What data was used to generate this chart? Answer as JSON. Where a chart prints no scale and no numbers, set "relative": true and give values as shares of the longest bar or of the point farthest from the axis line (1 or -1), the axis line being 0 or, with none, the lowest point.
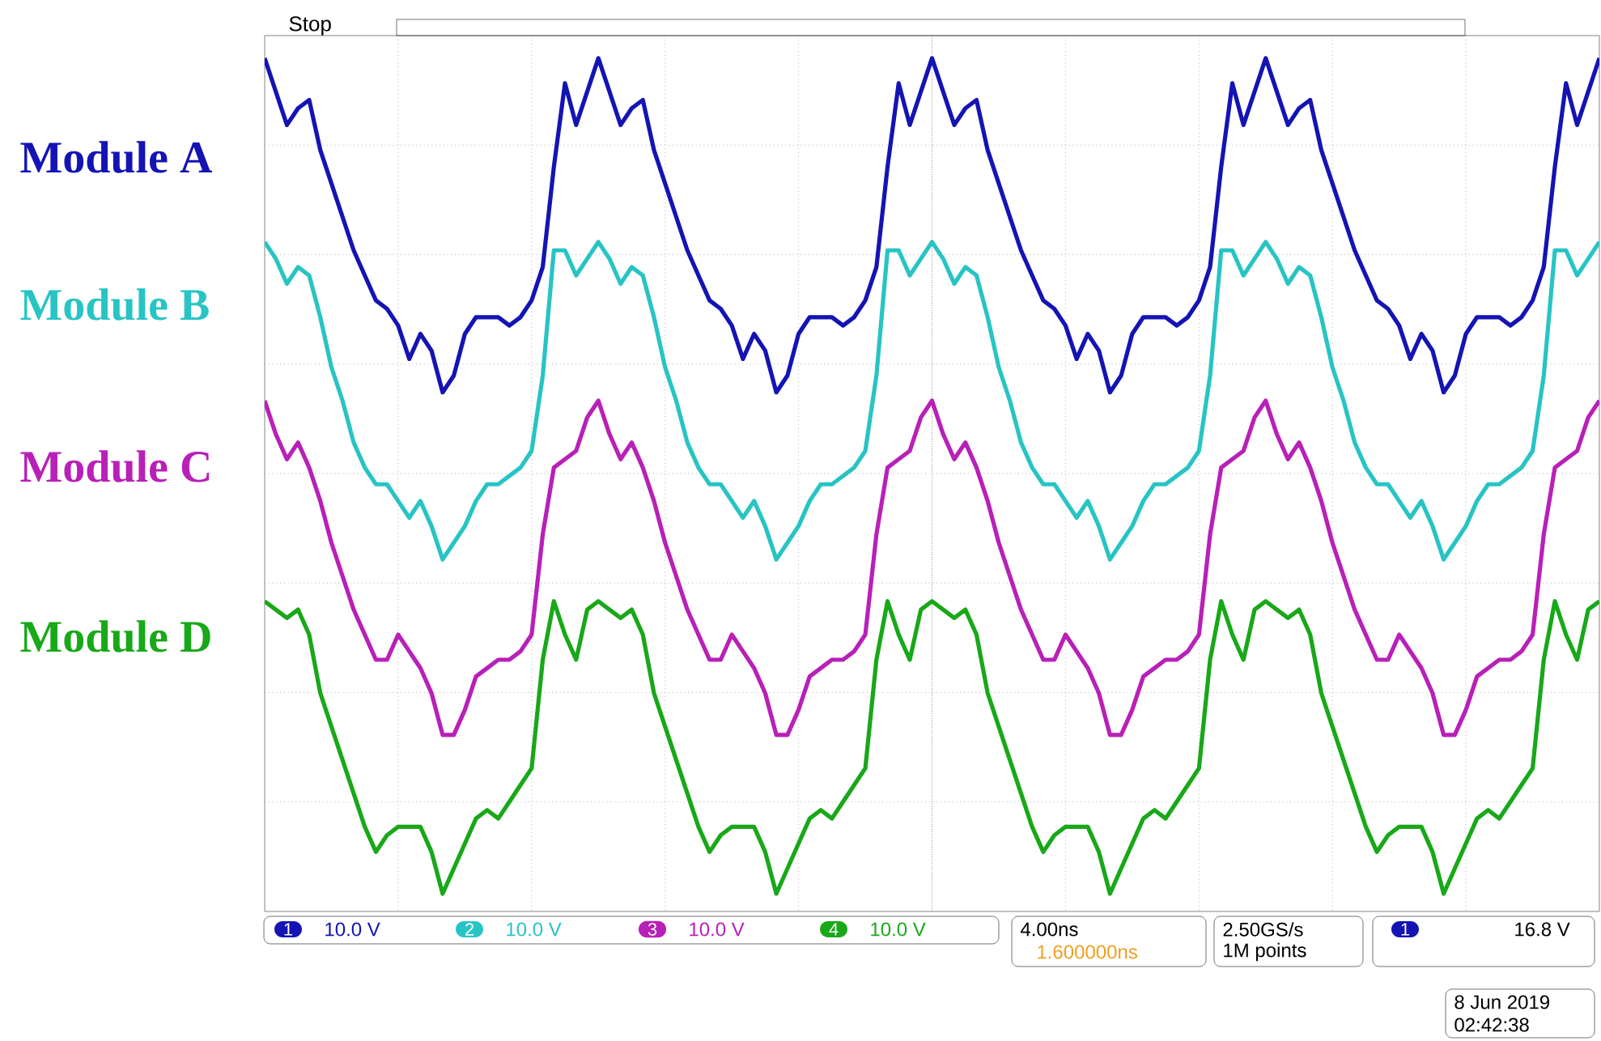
{
  "chart_data": {
    "type": "line",
    "relative": true,
    "grid": true,
    "categories": [
      null,
      null,
      null,
      null,
      null,
      null,
      null,
      null,
      null,
      null,
      null,
      null,
      null,
      null,
      null,
      null,
      null,
      null,
      null,
      null,
      null,
      null,
      null,
      null,
      null,
      null,
      null,
      null,
      null,
      null,
      null,
      null,
      null,
      null,
      null,
      null,
      null,
      null,
      null,
      null,
      null,
      null,
      null,
      null,
      null,
      null,
      null,
      null,
      null,
      null,
      null,
      null,
      null,
      null,
      null,
      null,
      null,
      null,
      null,
      null,
      null,
      null,
      null,
      null,
      null,
      null,
      null,
      null,
      null,
      null,
      null,
      null,
      null,
      null,
      null,
      null,
      null,
      null,
      null,
      null,
      null,
      null,
      null,
      null,
      null,
      null,
      null,
      null,
      null,
      null,
      null,
      null,
      null,
      null,
      null,
      null,
      null,
      null,
      null,
      null,
      null,
      null,
      null,
      null,
      null,
      null,
      null,
      null,
      null,
      null,
      null,
      null,
      null,
      null,
      null,
      null,
      null,
      null,
      null,
      null,
      null
    ],
    "series": [
      {
        "name": "Module A",
        "color": "#1414b4",
        "values": [
          1,
          0.96,
          0.92,
          0.94,
          0.95,
          0.89,
          0.85,
          0.81,
          0.77,
          0.74,
          0.71,
          0.7,
          0.68,
          0.64,
          0.67,
          0.65,
          0.6,
          0.62,
          0.67,
          0.69,
          0.69,
          0.69,
          0.68,
          0.69,
          0.71,
          0.75,
          0.87,
          0.97,
          0.92,
          0.96,
          1,
          0.96,
          0.92,
          0.94,
          0.95,
          0.89,
          0.85,
          0.81,
          0.77,
          0.74,
          0.71,
          0.7,
          0.68,
          0.64,
          0.67,
          0.65,
          0.6,
          0.62,
          0.67,
          0.69,
          0.69,
          0.69,
          0.68,
          0.69,
          0.71,
          0.75,
          0.87,
          0.97,
          0.92,
          0.96,
          1,
          0.96,
          0.92,
          0.94,
          0.95,
          0.89,
          0.85,
          0.81,
          0.77,
          0.74,
          0.71,
          0.7,
          0.68,
          0.64,
          0.67,
          0.65,
          0.6,
          0.62,
          0.67,
          0.69,
          0.69,
          0.69,
          0.68,
          0.69,
          0.71,
          0.75,
          0.87,
          0.97,
          0.92,
          0.96,
          1,
          0.96,
          0.92,
          0.94,
          0.95,
          0.89,
          0.85,
          0.81,
          0.77,
          0.74,
          0.71,
          0.7,
          0.68,
          0.64,
          0.67,
          0.65,
          0.6,
          0.62,
          0.67,
          0.69,
          0.69,
          0.69,
          0.68,
          0.69,
          0.71,
          0.75,
          0.87,
          0.97,
          0.92,
          0.96,
          1
        ]
      },
      {
        "name": "Module B",
        "color": "#28c4c4",
        "values": [
          0.78,
          0.76,
          0.73,
          0.75,
          0.74,
          0.69,
          0.63,
          0.59,
          0.54,
          0.51,
          0.49,
          0.49,
          0.47,
          0.45,
          0.47,
          0.44,
          0.4,
          0.42,
          0.44,
          0.47,
          0.49,
          0.49,
          0.5,
          0.51,
          0.53,
          0.62,
          0.77,
          0.77,
          0.74,
          0.76,
          0.78,
          0.76,
          0.73,
          0.75,
          0.74,
          0.69,
          0.63,
          0.59,
          0.54,
          0.51,
          0.49,
          0.49,
          0.47,
          0.45,
          0.47,
          0.44,
          0.4,
          0.42,
          0.44,
          0.47,
          0.49,
          0.49,
          0.5,
          0.51,
          0.53,
          0.62,
          0.77,
          0.77,
          0.74,
          0.76,
          0.78,
          0.76,
          0.73,
          0.75,
          0.74,
          0.69,
          0.63,
          0.59,
          0.54,
          0.51,
          0.49,
          0.49,
          0.47,
          0.45,
          0.47,
          0.44,
          0.4,
          0.42,
          0.44,
          0.47,
          0.49,
          0.49,
          0.5,
          0.51,
          0.53,
          0.62,
          0.77,
          0.77,
          0.74,
          0.76,
          0.78,
          0.76,
          0.73,
          0.75,
          0.74,
          0.69,
          0.63,
          0.59,
          0.54,
          0.51,
          0.49,
          0.49,
          0.47,
          0.45,
          0.47,
          0.44,
          0.4,
          0.42,
          0.44,
          0.47,
          0.49,
          0.49,
          0.5,
          0.51,
          0.53,
          0.62,
          0.77,
          0.77,
          0.74,
          0.76,
          0.78
        ]
      },
      {
        "name": "Module C",
        "color": "#b820b8",
        "values": [
          0.59,
          0.55,
          0.52,
          0.54,
          0.51,
          0.47,
          0.42,
          0.38,
          0.34,
          0.31,
          0.28,
          0.28,
          0.31,
          0.29,
          0.27,
          0.24,
          0.19,
          0.19,
          0.22,
          0.26,
          0.27,
          0.28,
          0.28,
          0.29,
          0.31,
          0.43,
          0.51,
          0.52,
          0.53,
          0.57,
          0.59,
          0.55,
          0.52,
          0.54,
          0.51,
          0.47,
          0.42,
          0.38,
          0.34,
          0.31,
          0.28,
          0.28,
          0.31,
          0.29,
          0.27,
          0.24,
          0.19,
          0.19,
          0.22,
          0.26,
          0.27,
          0.28,
          0.28,
          0.29,
          0.31,
          0.43,
          0.51,
          0.52,
          0.53,
          0.57,
          0.59,
          0.55,
          0.52,
          0.54,
          0.51,
          0.47,
          0.42,
          0.38,
          0.34,
          0.31,
          0.28,
          0.28,
          0.31,
          0.29,
          0.27,
          0.24,
          0.19,
          0.19,
          0.22,
          0.26,
          0.27,
          0.28,
          0.28,
          0.29,
          0.31,
          0.43,
          0.51,
          0.52,
          0.53,
          0.57,
          0.59,
          0.55,
          0.52,
          0.54,
          0.51,
          0.47,
          0.42,
          0.38,
          0.34,
          0.31,
          0.28,
          0.28,
          0.31,
          0.29,
          0.27,
          0.24,
          0.19,
          0.19,
          0.22,
          0.26,
          0.27,
          0.28,
          0.28,
          0.29,
          0.31,
          0.43,
          0.51,
          0.52,
          0.53,
          0.57,
          0.59
        ]
      },
      {
        "name": "Module D",
        "color": "#18a818",
        "values": [
          0.35,
          0.34,
          0.33,
          0.34,
          0.31,
          0.24,
          0.2,
          0.16,
          0.12,
          0.08,
          0.05,
          0.07,
          0.08,
          0.08,
          0.08,
          0.05,
          0,
          0.03,
          0.06,
          0.09,
          0.1,
          0.09,
          0.11,
          0.13,
          0.15,
          0.28,
          0.35,
          0.31,
          0.28,
          0.34,
          0.35,
          0.34,
          0.33,
          0.34,
          0.31,
          0.24,
          0.2,
          0.16,
          0.12,
          0.08,
          0.05,
          0.07,
          0.08,
          0.08,
          0.08,
          0.05,
          0,
          0.03,
          0.06,
          0.09,
          0.1,
          0.09,
          0.11,
          0.13,
          0.15,
          0.28,
          0.35,
          0.31,
          0.28,
          0.34,
          0.35,
          0.34,
          0.33,
          0.34,
          0.31,
          0.24,
          0.2,
          0.16,
          0.12,
          0.08,
          0.05,
          0.07,
          0.08,
          0.08,
          0.08,
          0.05,
          0,
          0.03,
          0.06,
          0.09,
          0.1,
          0.09,
          0.11,
          0.13,
          0.15,
          0.28,
          0.35,
          0.31,
          0.28,
          0.34,
          0.35,
          0.34,
          0.33,
          0.34,
          0.31,
          0.24,
          0.2,
          0.16,
          0.12,
          0.08,
          0.05,
          0.07,
          0.08,
          0.08,
          0.08,
          0.05,
          0,
          0.03,
          0.06,
          0.09,
          0.1,
          0.09,
          0.11,
          0.13,
          0.15,
          0.28,
          0.35,
          0.31,
          0.28,
          0.34,
          0.35
        ]
      }
    ],
    "annotations": [
      "Stop",
      "1",
      "10.0 V",
      "2",
      "10.0 V",
      "3",
      "10.0 V",
      "4",
      "10.0 V",
      "4.00ns",
      "1.600000ns",
      "2.50GS/s",
      "1M points",
      "1",
      "16.8 V",
      "8 Jun 2019",
      "02:42:38"
    ]
  }
}
